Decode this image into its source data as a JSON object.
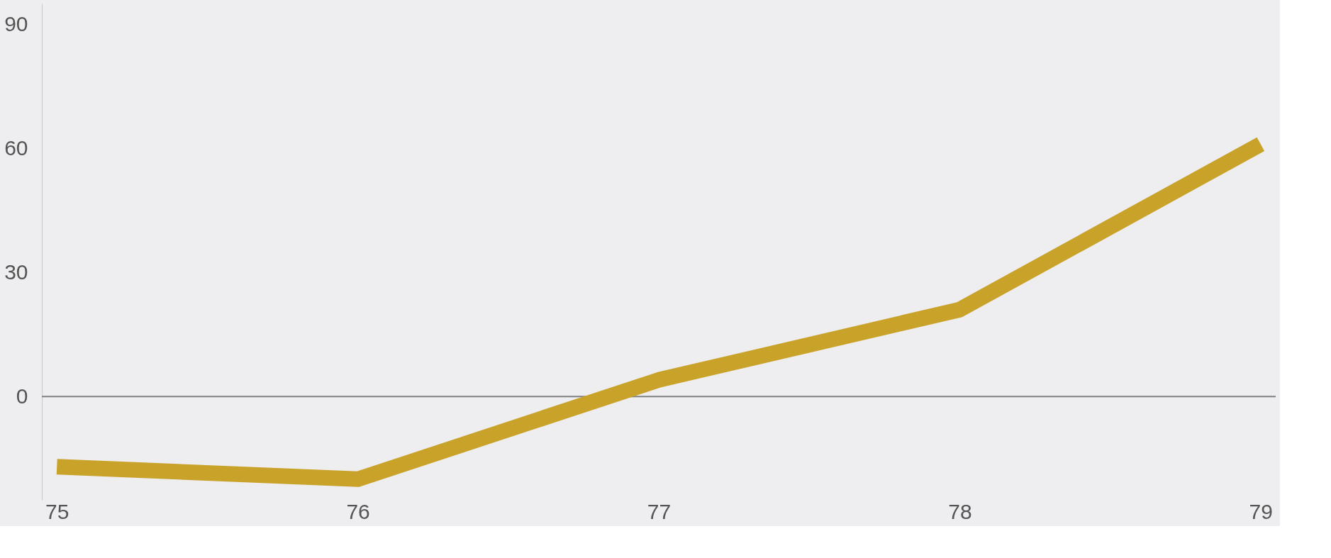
{
  "chart_data": {
    "type": "line",
    "categories": [
      "75",
      "76",
      "77",
      "78",
      "79"
    ],
    "series": [
      {
        "color": "#c9a22a",
        "values": [
          -17,
          -20,
          4,
          21,
          61
        ]
      }
    ],
    "ylim": [
      -25,
      95
    ],
    "yticks": [
      0,
      30,
      60,
      90
    ],
    "grid": false,
    "marker": "none",
    "line_style": "solid",
    "ref_lines": [
      {
        "axis": "y",
        "value": 0,
        "color": "#808080"
      }
    ]
  }
}
